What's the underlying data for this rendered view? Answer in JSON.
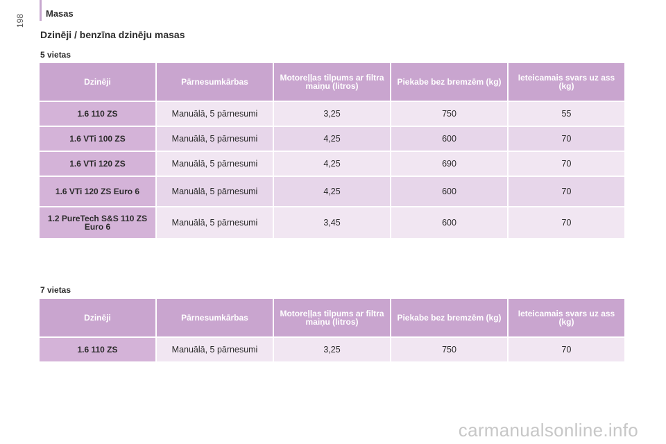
{
  "section": "Masas",
  "page_number": "198",
  "title": "Dzinēji / benzīna dzinēju masas",
  "headers": [
    "Dzinēji",
    "Pārnesumkārbas",
    "Motoreļļas tilpums ar filtra maiņu (litros)",
    "Piekabe bez bremzēm (kg)",
    "Ieteicamais svars uz ass (kg)"
  ],
  "table1": {
    "label": "5 vietas",
    "rows": [
      {
        "engine": "1.6 110 ZS",
        "gearbox": "Manuālā, 5 pārnesumi",
        "oil": "3,25",
        "trailer": "750",
        "axle": "55"
      },
      {
        "engine": "1.6 VTi 100 ZS",
        "gearbox": "Manuālā, 5 pārnesumi",
        "oil": "4,25",
        "trailer": "600",
        "axle": "70"
      },
      {
        "engine": "1.6 VTi 120 ZS",
        "gearbox": "Manuālā, 5 pārnesumi",
        "oil": "4,25",
        "trailer": "690",
        "axle": "70"
      },
      {
        "engine": "1.6 VTi 120 ZS Euro 6",
        "gearbox": "Manuālā, 5 pārnesumi",
        "oil": "4,25",
        "trailer": "600",
        "axle": "70"
      },
      {
        "engine": "1.2 PureTech S&S 110 ZS Euro 6",
        "gearbox": "Manuālā, 5 pārnesumi",
        "oil": "3,45",
        "trailer": "600",
        "axle": "70"
      }
    ]
  },
  "table2": {
    "label": "7 vietas",
    "rows": [
      {
        "engine": "1.6 110 ZS",
        "gearbox": "Manuālā, 5 pārnesumi",
        "oil": "3,25",
        "trailer": "750",
        "axle": "70"
      }
    ]
  },
  "watermark": "carmanualsonline.info"
}
